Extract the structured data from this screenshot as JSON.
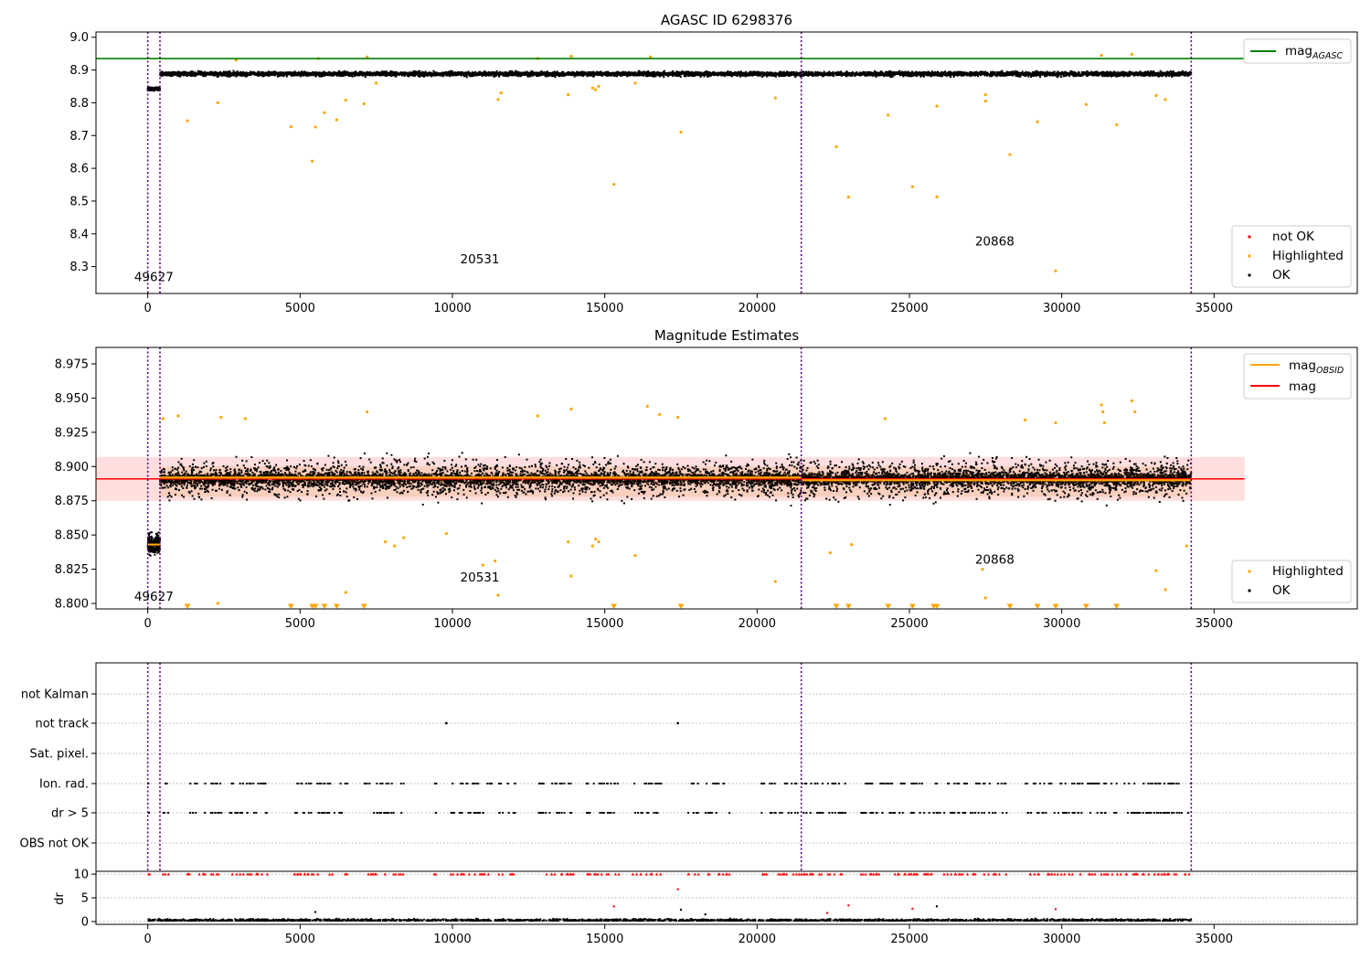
{
  "chart_data": [
    {
      "type": "scatter",
      "title": "AGASC ID 6298376",
      "xlim": [
        -1700,
        39700
      ],
      "ylim": [
        8.218,
        9.016
      ],
      "x_ticks": [
        0,
        5000,
        10000,
        15000,
        20000,
        25000,
        30000,
        35000
      ],
      "y_ticks": [
        8.3,
        8.4,
        8.5,
        8.6,
        8.7,
        8.8,
        8.9,
        9.0
      ],
      "y_tick_labels": [
        "8.3",
        "8.4",
        "8.5",
        "8.6",
        "8.7",
        "8.8",
        "8.9",
        "9.0"
      ],
      "grid": false,
      "series": [
        {
          "name": "not OK",
          "color": "#ff0000",
          "points": []
        },
        {
          "name": "Highlighted",
          "color": "#ffa500",
          "points": [
            [
              1300,
              8.745
            ],
            [
              2300,
              8.8
            ],
            [
              4700,
              8.727
            ],
            [
              5400,
              8.622
            ],
            [
              5500,
              8.726
            ],
            [
              5800,
              8.77
            ],
            [
              6200,
              8.748
            ],
            [
              6500,
              8.808
            ],
            [
              7100,
              8.797
            ],
            [
              11500,
              8.81
            ],
            [
              11600,
              8.83
            ],
            [
              15300,
              8.551
            ],
            [
              17500,
              8.71
            ],
            [
              20600,
              8.815
            ],
            [
              22600,
              8.666
            ],
            [
              23000,
              8.512
            ],
            [
              24300,
              8.762
            ],
            [
              25100,
              8.544
            ],
            [
              25900,
              8.513
            ],
            [
              25900,
              8.79
            ],
            [
              27500,
              8.805
            ],
            [
              27500,
              8.825
            ],
            [
              28300,
              8.642
            ],
            [
              29200,
              8.742
            ],
            [
              29800,
              8.287
            ],
            [
              30800,
              8.795
            ],
            [
              31800,
              8.733
            ],
            [
              33100,
              8.822
            ],
            [
              33400,
              8.81
            ],
            [
              14600,
              8.845
            ],
            [
              14700,
              8.84
            ],
            [
              14800,
              8.85
            ],
            [
              13800,
              8.825
            ],
            [
              16000,
              8.86
            ],
            [
              16500,
              8.94
            ],
            [
              31300,
              8.945
            ],
            [
              32300,
              8.948
            ],
            [
              12800,
              8.935
            ],
            [
              13900,
              8.942
            ],
            [
              7200,
              8.94
            ],
            [
              7500,
              8.86
            ],
            [
              2900,
              8.93
            ],
            [
              5600,
              8.935
            ]
          ]
        },
        {
          "name": "OK",
          "color": "#000000",
          "points": []
        }
      ],
      "lines": [
        {
          "name": "mag_AGASC",
          "color": "#008000",
          "y": 8.935
        }
      ],
      "obsids": [
        {
          "label": "49627",
          "x": 200,
          "y": 8.255
        },
        {
          "label": "20531",
          "x": 10900,
          "y": 8.31
        },
        {
          "label": "20868",
          "x": 27800,
          "y": 8.365
        }
      ],
      "vlines": [
        0,
        400,
        21450,
        34250
      ],
      "legend_upper": "upper right",
      "legend_lower": "lower right"
    },
    {
      "type": "scatter",
      "title": "Magnitude Estimates",
      "xlim": [
        -1700,
        39700
      ],
      "ylim": [
        8.796,
        8.987
      ],
      "x_ticks": [
        0,
        5000,
        10000,
        15000,
        20000,
        25000,
        30000,
        35000
      ],
      "y_ticks": [
        8.8,
        8.825,
        8.85,
        8.875,
        8.9,
        8.925,
        8.95,
        8.975
      ],
      "y_tick_labels": [
        "8.800",
        "8.825",
        "8.850",
        "8.875",
        "8.900",
        "8.925",
        "8.950",
        "8.975"
      ],
      "grid": false,
      "series": [
        {
          "name": "Highlighted",
          "color": "#ffa500",
          "points": [
            [
              1300,
              8.798
            ],
            [
              2300,
              8.8
            ],
            [
              4700,
              8.798
            ],
            [
              5400,
              8.798
            ],
            [
              5500,
              8.798
            ],
            [
              5800,
              8.798
            ],
            [
              6200,
              8.798
            ],
            [
              6500,
              8.808
            ],
            [
              7100,
              8.798
            ],
            [
              7800,
              8.845
            ],
            [
              8100,
              8.842
            ],
            [
              8400,
              8.848
            ],
            [
              9800,
              8.851
            ],
            [
              11000,
              8.828
            ],
            [
              11400,
              8.831
            ],
            [
              11500,
              8.806
            ],
            [
              13900,
              8.82
            ],
            [
              15300,
              8.798
            ],
            [
              17500,
              8.798
            ],
            [
              20600,
              8.816
            ],
            [
              22400,
              8.837
            ],
            [
              22600,
              8.798
            ],
            [
              23000,
              8.798
            ],
            [
              23100,
              8.843
            ],
            [
              24300,
              8.798
            ],
            [
              25100,
              8.798
            ],
            [
              25800,
              8.798
            ],
            [
              25900,
              8.798
            ],
            [
              27400,
              8.825
            ],
            [
              27500,
              8.804
            ],
            [
              28300,
              8.798
            ],
            [
              29200,
              8.798
            ],
            [
              29800,
              8.798
            ],
            [
              30800,
              8.798
            ],
            [
              31800,
              8.798
            ],
            [
              33100,
              8.824
            ],
            [
              33400,
              8.81
            ],
            [
              34100,
              8.842
            ],
            [
              14600,
              8.842
            ],
            [
              14700,
              8.847
            ],
            [
              14800,
              8.845
            ],
            [
              13800,
              8.845
            ],
            [
              16000,
              8.835
            ],
            [
              12800,
              8.937
            ],
            [
              13900,
              8.942
            ],
            [
              16400,
              8.944
            ],
            [
              16800,
              8.938
            ],
            [
              17400,
              8.936
            ],
            [
              31300,
              8.945
            ],
            [
              31350,
              8.94
            ],
            [
              31400,
              8.932
            ],
            [
              32300,
              8.948
            ],
            [
              32400,
              8.94
            ],
            [
              7200,
              8.94
            ],
            [
              2400,
              8.936
            ],
            [
              3200,
              8.935
            ],
            [
              1000,
              8.937
            ],
            [
              500,
              8.935
            ],
            [
              29800,
              8.932
            ],
            [
              28800,
              8.934
            ],
            [
              24200,
              8.935
            ]
          ]
        },
        {
          "name": "OK",
          "color": "#000000",
          "points": []
        }
      ],
      "lines": [
        {
          "name": "mag_OBSID",
          "color": "#ffa500",
          "segments": [
            [
              0,
              400,
              8.843
            ],
            [
              400,
              21450,
              8.892
            ],
            [
              21450,
              34250,
              8.89
            ]
          ]
        },
        {
          "name": "mag",
          "color": "#ff0000",
          "y": 8.891,
          "band": [
            8.875,
            8.907
          ]
        }
      ],
      "obsids": [
        {
          "label": "49627",
          "x": 200,
          "y": 8.802
        },
        {
          "label": "20531",
          "x": 10900,
          "y": 8.816
        },
        {
          "label": "20868",
          "x": 27800,
          "y": 8.829
        }
      ],
      "vlines": [
        0,
        400,
        21450,
        34250
      ],
      "legend_upper": "upper right",
      "legend_lower": "lower right"
    },
    {
      "type": "scatter",
      "title": "",
      "xlim": [
        -1700,
        39700
      ],
      "categories": [
        "OBS not OK",
        "dr > 5",
        "Ion. rad.",
        "Sat. pixel.",
        "not track",
        "not Kalman"
      ],
      "grid": "horizontal dotted",
      "flag_points": {
        "not track": [
          9800,
          17400
        ]
      },
      "vlines": [
        0,
        400,
        21450,
        34250
      ]
    },
    {
      "type": "scatter",
      "title": "",
      "ylabel": "dr",
      "xlim": [
        -1700,
        39700
      ],
      "ylim": [
        -0.6,
        10.6
      ],
      "x_ticks": [
        0,
        5000,
        10000,
        15000,
        20000,
        25000,
        30000,
        35000
      ],
      "y_ticks": [
        0,
        5,
        10
      ],
      "y_tick_labels": [
        "0",
        "5",
        "10"
      ],
      "grid": "horizontal dotted",
      "outliers": [
        [
          5500,
          2.0
        ],
        [
          15300,
          3.2
        ],
        [
          17400,
          6.8
        ],
        [
          17500,
          2.5
        ],
        [
          23000,
          3.4
        ],
        [
          25100,
          2.7
        ],
        [
          25900,
          3.2
        ],
        [
          29800,
          2.6
        ],
        [
          22300,
          1.8
        ],
        [
          18300,
          1.5
        ]
      ],
      "vlines": [
        0,
        400,
        21450,
        34250
      ]
    }
  ],
  "legend": {
    "not_ok": "not OK",
    "highlighted": "Highlighted",
    "ok": "OK",
    "mag": "mag",
    "sub_agasc": "AGASC",
    "sub_obsid": "OBSID"
  }
}
